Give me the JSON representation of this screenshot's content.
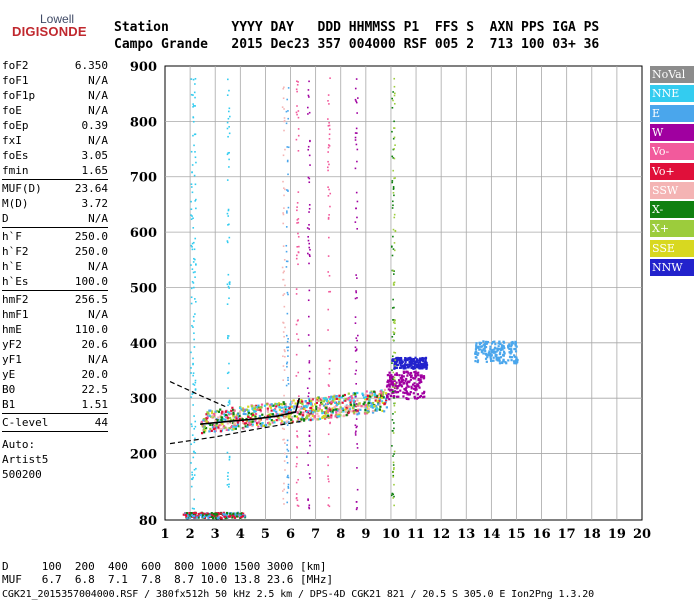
{
  "logo": {
    "line1": "Lowell",
    "line2": "DIGISONDE"
  },
  "header": {
    "row1": "Station        YYYY DAY   DDD HHMMSS P1  FFS S  AXN PPS IGA PS",
    "row2": "Campo Grande   2015 Dec23 357 004000 RSF 005 2  713 100 03+ 36"
  },
  "params": [
    {
      "k": "foF2",
      "v": "6.350"
    },
    {
      "k": "foF1",
      "v": "N/A"
    },
    {
      "k": "foF1p",
      "v": "N/A"
    },
    {
      "k": "foE",
      "v": "N/A"
    },
    {
      "k": "foEp",
      "v": "0.39"
    },
    {
      "k": "fxI",
      "v": "N/A"
    },
    {
      "k": "foEs",
      "v": "3.05"
    },
    {
      "k": "fmin",
      "v": "1.65"
    },
    {
      "sep": true
    },
    {
      "k": "MUF(D)",
      "v": "23.64"
    },
    {
      "k": "M(D)",
      "v": "3.72"
    },
    {
      "k": "D",
      "v": "N/A"
    },
    {
      "sep": true
    },
    {
      "k": "h`F",
      "v": "250.0"
    },
    {
      "k": "h`F2",
      "v": "250.0"
    },
    {
      "k": "h`E",
      "v": "N/A"
    },
    {
      "k": "h`Es",
      "v": "100.0"
    },
    {
      "sep": true
    },
    {
      "k": "hmF2",
      "v": "256.5"
    },
    {
      "k": "hmF1",
      "v": "N/A"
    },
    {
      "k": "hmE",
      "v": "110.0"
    },
    {
      "k": "yF2",
      "v": "20.6"
    },
    {
      "k": "yF1",
      "v": "N/A"
    },
    {
      "k": "yE",
      "v": "20.0"
    },
    {
      "k": "B0",
      "v": "22.5"
    },
    {
      "k": "B1",
      "v": "1.51"
    },
    {
      "sep": true
    },
    {
      "k": "C-level",
      "v": "44"
    },
    {
      "sep": true
    }
  ],
  "auto": [
    "Auto:",
    "Artist5",
    "500200"
  ],
  "legend": [
    {
      "label": "NoVal",
      "color": "#8c8c8c"
    },
    {
      "label": "NNE",
      "color": "#33ccf0"
    },
    {
      "label": "E",
      "color": "#4aa6ec"
    },
    {
      "label": "W",
      "color": "#a000a0"
    },
    {
      "label": "Vo-",
      "color": "#f25a9c"
    },
    {
      "label": "Vo+",
      "color": "#e0103a"
    },
    {
      "label": "SSW",
      "color": "#f4b4b4"
    },
    {
      "label": "X-",
      "color": "#108010"
    },
    {
      "label": "X+",
      "color": "#9ccc3c"
    },
    {
      "label": "SSE",
      "color": "#d8d820"
    },
    {
      "label": "NNW",
      "color": "#2222cc"
    }
  ],
  "bottom": {
    "d_row": "D     100  200  400  600  800 1000 1500 3000 [km]",
    "muf_row": "MUF   6.7  6.8  7.1  7.8  8.7 10.0 13.8 23.6 [MHz]",
    "footer": "CGK21_2015357004000.RSF / 380fx512h 50 kHz 2.5 km / DPS-4D CGK21 821 / 20.5 S 305.0 E Ion2Png 1.3.20"
  },
  "chart_data": {
    "type": "scatter",
    "title": "",
    "xlabel": "",
    "ylabel": "",
    "xlim": [
      1,
      20
    ],
    "ylim": [
      80,
      900
    ],
    "x_ticks": [
      1,
      2,
      3,
      4,
      5,
      6,
      7,
      8,
      9,
      10,
      11,
      12,
      13,
      14,
      15,
      16,
      17,
      18,
      19,
      20
    ],
    "y_ticks": [
      80,
      200,
      300,
      400,
      500,
      600,
      700,
      800,
      900
    ],
    "grid": true,
    "legend_position": "right",
    "profile_line": {
      "x": [
        2.4,
        3.5,
        4.5,
        5.5,
        6.2,
        6.35
      ],
      "y": [
        253,
        258,
        262,
        268,
        275,
        300
      ]
    },
    "dashed_extrapolation": [
      {
        "x": [
          1.2,
          2.5,
          3.4
        ],
        "y": [
          330,
          303,
          285
        ]
      },
      {
        "x": [
          1.2,
          3.0,
          4.5,
          6.4
        ],
        "y": [
          218,
          230,
          243,
          258
        ]
      }
    ],
    "clusters": [
      {
        "name": "F-trace mixed",
        "x_range": [
          2.4,
          9.8
        ],
        "y_range": [
          250,
          330
        ],
        "color_mix": [
          "#f4b4b4",
          "#4aa6ec",
          "#33ccf0",
          "#9ccc3c",
          "#d8d820",
          "#f25a9c",
          "#108010",
          "#e0103a"
        ]
      },
      {
        "name": "W cluster",
        "x_range": [
          9.8,
          11.3
        ],
        "y_range": [
          300,
          350
        ],
        "color": "#a000a0"
      },
      {
        "name": "NNW cluster",
        "x_range": [
          10.0,
          11.4
        ],
        "y_range": [
          355,
          375
        ],
        "color": "#2222cc"
      },
      {
        "name": "E cluster",
        "x_range": [
          13.3,
          15.0
        ],
        "y_range": [
          365,
          405
        ],
        "color": "#4aa6ec"
      },
      {
        "name": "Es trace",
        "x_range": [
          1.7,
          4.2
        ],
        "y_range": [
          85,
          95
        ],
        "color_mix": [
          "#e0103a",
          "#4aa6ec",
          "#108010"
        ]
      }
    ]
  }
}
